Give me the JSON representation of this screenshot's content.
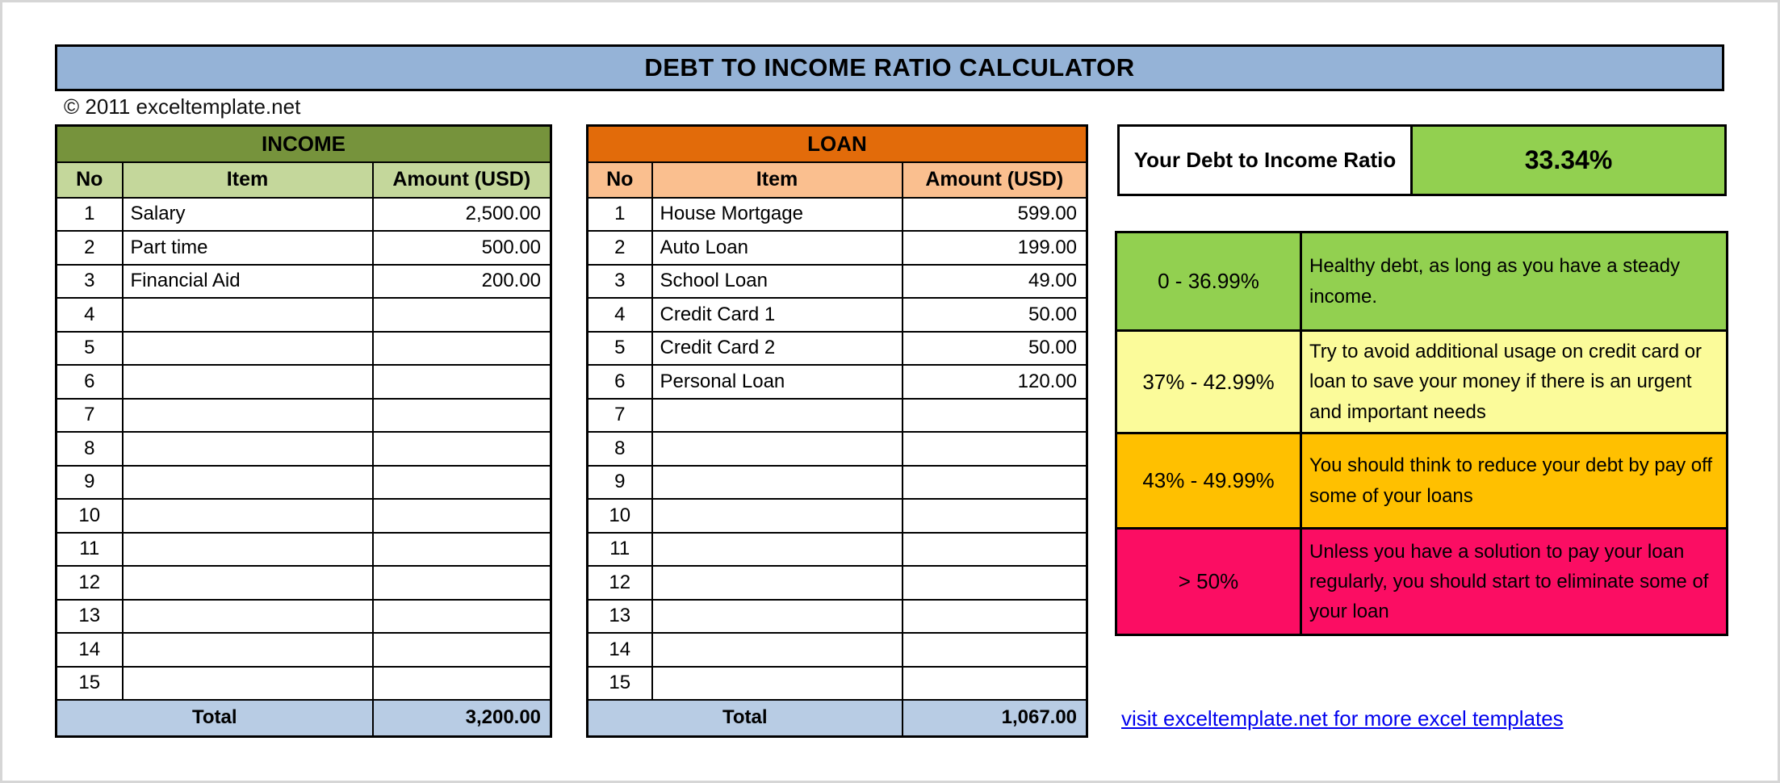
{
  "title_banner": {
    "text": "DEBT TO INCOME RATIO CALCULATOR",
    "bg": "#95B3D7"
  },
  "copyright": "© 2011 exceltemplate.net",
  "income_table": {
    "title": "INCOME",
    "header_bg": "#76933C",
    "subheader_bg": "#C4D79B",
    "total_bg": "#B8CCE4",
    "columns": [
      "No",
      "Item",
      "Amount (USD)"
    ],
    "rows": [
      {
        "no": "1",
        "item": "Salary",
        "amount": "2,500.00"
      },
      {
        "no": "2",
        "item": "Part time",
        "amount": "500.00"
      },
      {
        "no": "3",
        "item": "Financial Aid",
        "amount": "200.00"
      },
      {
        "no": "4",
        "item": "",
        "amount": ""
      },
      {
        "no": "5",
        "item": "",
        "amount": ""
      },
      {
        "no": "6",
        "item": "",
        "amount": ""
      },
      {
        "no": "7",
        "item": "",
        "amount": ""
      },
      {
        "no": "8",
        "item": "",
        "amount": ""
      },
      {
        "no": "9",
        "item": "",
        "amount": ""
      },
      {
        "no": "10",
        "item": "",
        "amount": ""
      },
      {
        "no": "11",
        "item": "",
        "amount": ""
      },
      {
        "no": "12",
        "item": "",
        "amount": ""
      },
      {
        "no": "13",
        "item": "",
        "amount": ""
      },
      {
        "no": "14",
        "item": "",
        "amount": ""
      },
      {
        "no": "15",
        "item": "",
        "amount": ""
      }
    ],
    "total_label": "Total",
    "total_value": "3,200.00"
  },
  "loan_table": {
    "title": "LOAN",
    "header_bg": "#E26B0A",
    "subheader_bg": "#FABF8F",
    "total_bg": "#B8CCE4",
    "columns": [
      "No",
      "Item",
      "Amount (USD)"
    ],
    "rows": [
      {
        "no": "1",
        "item": "House Mortgage",
        "amount": "599.00"
      },
      {
        "no": "2",
        "item": "Auto Loan",
        "amount": "199.00"
      },
      {
        "no": "3",
        "item": "School Loan",
        "amount": "49.00"
      },
      {
        "no": "4",
        "item": "Credit Card 1",
        "amount": "50.00"
      },
      {
        "no": "5",
        "item": "Credit Card 2",
        "amount": "50.00"
      },
      {
        "no": "6",
        "item": "Personal Loan",
        "amount": "120.00"
      },
      {
        "no": "7",
        "item": "",
        "amount": ""
      },
      {
        "no": "8",
        "item": "",
        "amount": ""
      },
      {
        "no": "9",
        "item": "",
        "amount": ""
      },
      {
        "no": "10",
        "item": "",
        "amount": ""
      },
      {
        "no": "11",
        "item": "",
        "amount": ""
      },
      {
        "no": "12",
        "item": "",
        "amount": ""
      },
      {
        "no": "13",
        "item": "",
        "amount": ""
      },
      {
        "no": "14",
        "item": "",
        "amount": ""
      },
      {
        "no": "15",
        "item": "",
        "amount": ""
      }
    ],
    "total_label": "Total",
    "total_value": "1,067.00"
  },
  "ratio_panel": {
    "label": "Your Debt to Income Ratio",
    "value": "33.34%",
    "value_bg": "#92D050"
  },
  "legend": {
    "rows": [
      {
        "range": "0 - 36.99%",
        "color": "#92D050",
        "description": "Healthy debt, as long as you have a steady income."
      },
      {
        "range": "37% - 42.99%",
        "color": "#FBFB9A",
        "description": "Try to avoid additional usage on credit card or loan to save your money if there is an urgent and important needs"
      },
      {
        "range": "43% - 49.99%",
        "color": "#FFC000",
        "description": "You should think to reduce your debt by pay off some of your loans"
      },
      {
        "range": "> 50%",
        "color": "#FB0D63",
        "description": "Unless you have a solution to pay your loan regularly, you should start to eliminate some of your loan"
      }
    ]
  },
  "footer_link": "visit exceltemplate.net for more excel templates"
}
